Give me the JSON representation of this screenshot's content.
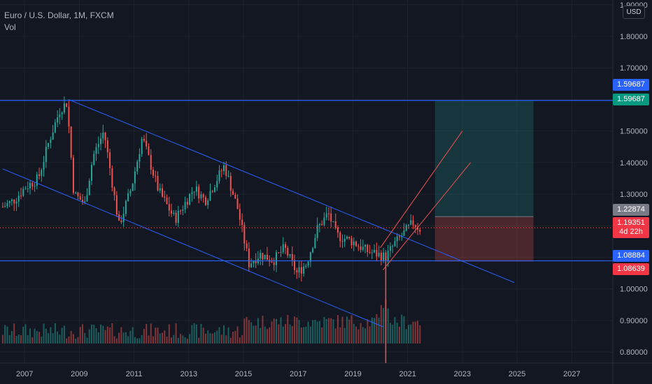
{
  "header": {
    "symbol_line": "Euro / U.S. Dollar, 1M, FXCM",
    "volume_label": "Vol",
    "currency": "USD"
  },
  "price_tags": {
    "top_blue": "1.59687",
    "top_green": "1.59687",
    "last_grey": "1.22874",
    "current": "1.19351",
    "countdown": "4d 22h",
    "support_blue": "1.08884",
    "stop_red": "1.08639"
  },
  "colors": {
    "background": "#131722",
    "grid": "#1e222d",
    "up": "#26a69a",
    "down": "#ef5350",
    "trendline": "#2962ff",
    "target_zone": "#26a69a",
    "stop_zone": "#ef5350",
    "axis_text": "#b2b5be"
  },
  "chart_data": {
    "type": "candlestick",
    "title": "Euro / U.S. Dollar, 1M, FXCM",
    "x_tick_labels": [
      "2007",
      "2009",
      "2011",
      "2013",
      "2015",
      "2017",
      "2019",
      "2021",
      "2023",
      "2025",
      "2027"
    ],
    "y_tick_labels": [
      "0.80000",
      "0.90000",
      "1.00000",
      "1.10000",
      "1.20000",
      "1.30000",
      "1.40000",
      "1.50000",
      "1.60000",
      "1.70000",
      "1.80000",
      "1.90000"
    ],
    "y_range": [
      0.765,
      1.915
    ],
    "x_range": [
      2006.1,
      2028.5
    ],
    "series_close_anchors": [
      [
        2006.2,
        1.26
      ],
      [
        2006.6,
        1.28
      ],
      [
        2007.0,
        1.32
      ],
      [
        2007.5,
        1.35
      ],
      [
        2007.9,
        1.47
      ],
      [
        2008.3,
        1.57
      ],
      [
        2008.55,
        1.59
      ],
      [
        2008.8,
        1.3
      ],
      [
        2009.2,
        1.27
      ],
      [
        2009.5,
        1.42
      ],
      [
        2009.9,
        1.5
      ],
      [
        2010.45,
        1.2
      ],
      [
        2010.9,
        1.32
      ],
      [
        2011.3,
        1.48
      ],
      [
        2011.9,
        1.31
      ],
      [
        2012.5,
        1.22
      ],
      [
        2013.2,
        1.32
      ],
      [
        2013.6,
        1.28
      ],
      [
        2014.3,
        1.39
      ],
      [
        2014.8,
        1.25
      ],
      [
        2015.2,
        1.08
      ],
      [
        2015.6,
        1.11
      ],
      [
        2016.1,
        1.09
      ],
      [
        2016.5,
        1.13
      ],
      [
        2016.95,
        1.05
      ],
      [
        2017.3,
        1.08
      ],
      [
        2017.7,
        1.19
      ],
      [
        2018.1,
        1.24
      ],
      [
        2018.4,
        1.17
      ],
      [
        2019.0,
        1.15
      ],
      [
        2019.5,
        1.12
      ],
      [
        2019.9,
        1.11
      ],
      [
        2020.2,
        1.1
      ],
      [
        2020.5,
        1.14
      ],
      [
        2020.9,
        1.18
      ],
      [
        2021.2,
        1.21
      ],
      [
        2021.45,
        1.19
      ]
    ],
    "volume_note": "monthly volume bars shown at bottom",
    "horizontal_levels": [
      1.59687,
      1.08884
    ],
    "descending_channel": {
      "upper": [
        [
          2008.6,
          1.6
        ],
        [
          2024.9,
          1.02
        ]
      ],
      "lower": [
        [
          2006.2,
          1.38
        ],
        [
          2020.1,
          0.88
        ]
      ]
    },
    "rising_channel": {
      "upper": [
        [
          2020.0,
          1.13
        ],
        [
          2023.0,
          1.5
        ]
      ],
      "lower": [
        [
          2020.1,
          1.06
        ],
        [
          2023.3,
          1.4
        ]
      ]
    },
    "position": {
      "entry": 1.22874,
      "target": 1.59687,
      "stop": 1.08639,
      "start_x": 2022.0,
      "end_x": 2025.6
    },
    "current_price": 1.19351
  }
}
